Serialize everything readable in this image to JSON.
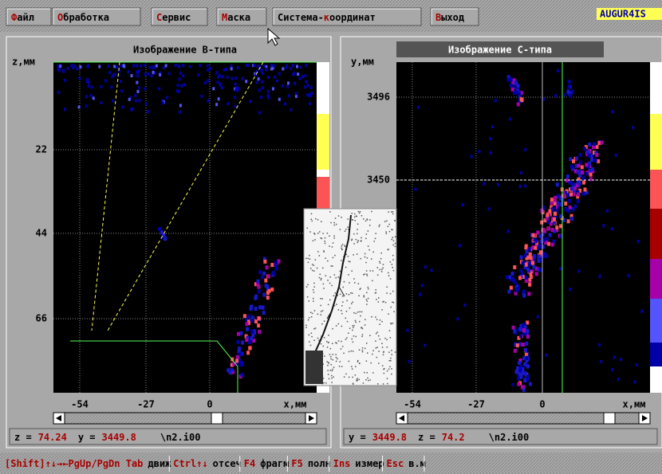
{
  "menu": {
    "items": [
      {
        "key": "Ф",
        "rest": "айл"
      },
      {
        "key": "О",
        "rest": "бработка"
      },
      {
        "key": "С",
        "rest": "ервис"
      },
      {
        "key": "М",
        "rest": "аска"
      },
      {
        "before": "Система-",
        "key": "к",
        "rest": "оординат"
      },
      {
        "key": "В",
        "rest": "ыход"
      }
    ],
    "brand": "AUGUR4IS"
  },
  "panels": [
    {
      "title": "Изображение B-типа",
      "y_axis_label": "z,мм",
      "y_ticks": [
        "22",
        "44",
        "66"
      ],
      "x_ticks": [
        "-54",
        "-27",
        "0"
      ],
      "x_axis_label": "x,мм",
      "status": [
        {
          "label": "z =",
          "value": "74.24"
        },
        {
          "label": "y =",
          "value": "3449.8"
        }
      ],
      "file": "\\n2.i00"
    },
    {
      "title": "Изображение С-типа",
      "y_axis_label": "y,мм",
      "y_ticks": [
        "3496",
        "3450"
      ],
      "x_ticks": [
        "-54",
        "-27",
        "0"
      ],
      "x_axis_label": "x,мм",
      "status": [
        {
          "label": "y =",
          "value": "3449.8"
        },
        {
          "label": "z =",
          "value": "74.2"
        }
      ],
      "file": "\\n2.i00"
    }
  ],
  "hint_bar": [
    {
      "key": "[Shift]↑↓→←PgUp/PgDn Tab",
      "action": "движ"
    },
    {
      "key": "Ctrl↑↓",
      "action": "отсеч"
    },
    {
      "key": "F4",
      "action": "фрагм"
    },
    {
      "key": "F5",
      "action": "полн"
    },
    {
      "key": "Ins",
      "action": "измер"
    },
    {
      "key": "Esc",
      "action": "в.м"
    }
  ]
}
